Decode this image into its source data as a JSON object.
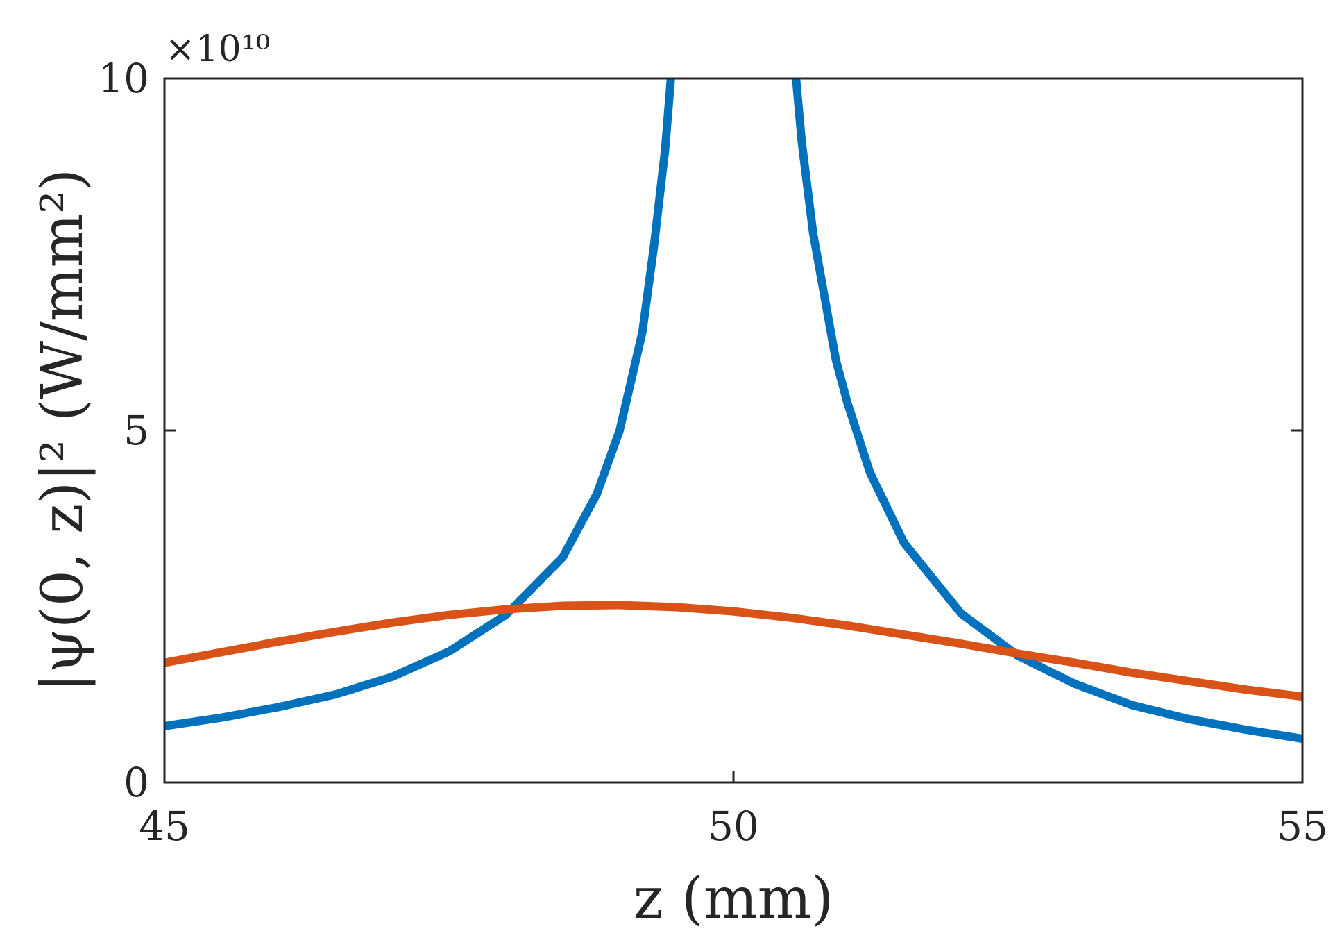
{
  "chart_data": {
    "type": "line",
    "xlabel": "z (mm)",
    "ylabel": "|ψ(0, z)|² (W/mm²)",
    "y_multiplier": "×10¹⁰",
    "xlim": [
      45,
      55
    ],
    "ylim": [
      0,
      10
    ],
    "x_ticks": [
      "45",
      "50",
      "55"
    ],
    "y_ticks": [
      "0",
      "5",
      "10"
    ],
    "grid": false,
    "legend": "none",
    "series": [
      {
        "color": "#0072BD",
        "points": [
          [
            45.0,
            0.8
          ],
          [
            45.5,
            0.92
          ],
          [
            46.0,
            1.07
          ],
          [
            46.5,
            1.25
          ],
          [
            47.0,
            1.5
          ],
          [
            47.5,
            1.86
          ],
          [
            48.0,
            2.38
          ],
          [
            48.5,
            3.2
          ],
          [
            48.8,
            4.1
          ],
          [
            49.0,
            5.0
          ],
          [
            49.2,
            6.4
          ],
          [
            49.3,
            7.6
          ],
          [
            49.4,
            9.0
          ],
          [
            49.45,
            10.0
          ]
        ]
      },
      {
        "color": "#0072BD",
        "points": [
          [
            50.55,
            10.0
          ],
          [
            50.6,
            9.1
          ],
          [
            50.7,
            7.8
          ],
          [
            50.9,
            6.0
          ],
          [
            51.0,
            5.4
          ],
          [
            51.2,
            4.4
          ],
          [
            51.5,
            3.4
          ],
          [
            52.0,
            2.4
          ],
          [
            52.5,
            1.8
          ],
          [
            53.0,
            1.4
          ],
          [
            53.5,
            1.1
          ],
          [
            54.0,
            0.9
          ],
          [
            54.5,
            0.75
          ],
          [
            55.0,
            0.62
          ]
        ]
      },
      {
        "color": "#D95319",
        "points": [
          [
            45.0,
            1.7
          ],
          [
            45.5,
            1.85
          ],
          [
            46.0,
            2.0
          ],
          [
            46.5,
            2.14
          ],
          [
            47.0,
            2.27
          ],
          [
            47.5,
            2.38
          ],
          [
            48.0,
            2.46
          ],
          [
            48.5,
            2.51
          ],
          [
            49.0,
            2.52
          ],
          [
            49.5,
            2.49
          ],
          [
            50.0,
            2.43
          ],
          [
            50.5,
            2.34
          ],
          [
            51.0,
            2.23
          ],
          [
            51.5,
            2.1
          ],
          [
            52.0,
            1.97
          ],
          [
            52.5,
            1.83
          ],
          [
            53.0,
            1.7
          ],
          [
            53.5,
            1.56
          ],
          [
            54.0,
            1.44
          ],
          [
            54.5,
            1.32
          ],
          [
            55.0,
            1.22
          ]
        ]
      }
    ]
  }
}
